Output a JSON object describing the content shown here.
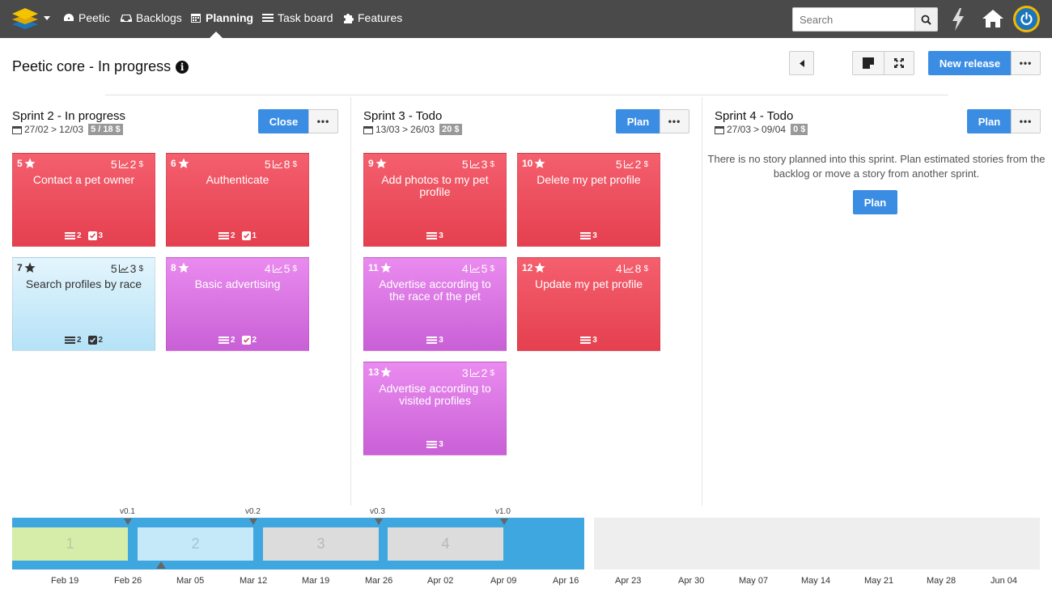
{
  "nav": {
    "items": [
      {
        "label": "Peetic",
        "icon": "dashboard-icon"
      },
      {
        "label": "Backlogs",
        "icon": "inbox-icon"
      },
      {
        "label": "Planning",
        "icon": "calendar-icon",
        "active": true
      },
      {
        "label": "Task board",
        "icon": "taskboard-icon"
      },
      {
        "label": "Features",
        "icon": "puzzle-icon"
      }
    ],
    "search_placeholder": "Search"
  },
  "header": {
    "title": "Peetic core - In progress",
    "new_release_label": "New release",
    "more_label": "•••"
  },
  "sprints": [
    {
      "title": "Sprint 2 - In progress",
      "from": "27/02",
      "to": "12/03",
      "badge": "5 / 18 $",
      "action": "Close",
      "more": "•••"
    },
    {
      "title": "Sprint 3 - Todo",
      "from": "13/03",
      "to": "26/03",
      "badge": "20 $",
      "action": "Plan",
      "more": "•••"
    },
    {
      "title": "Sprint 4 - Todo",
      "from": "27/03",
      "to": "09/04",
      "badge": "0 $",
      "action": "Plan",
      "more": "•••",
      "empty_message": "There is no story planned into this sprint. Plan estimated stories from the backlog or move a story from another sprint.",
      "empty_action": "Plan"
    }
  ],
  "stories": [
    {
      "id": "5",
      "value": "5",
      "effort": "2",
      "title": "Contact a pet owner",
      "tasks": "2",
      "checks": "3"
    },
    {
      "id": "6",
      "value": "5",
      "effort": "8",
      "title": "Authenticate",
      "tasks": "2",
      "checks": "1"
    },
    {
      "id": "7",
      "value": "5",
      "effort": "3",
      "title": "Search profiles by race",
      "tasks": "2",
      "checks": "2"
    },
    {
      "id": "8",
      "value": "4",
      "effort": "5",
      "title": "Basic advertising",
      "tasks": "2",
      "checks": "2"
    },
    {
      "id": "9",
      "value": "5",
      "effort": "3",
      "title": "Add photos to my pet profile",
      "tasks": "3"
    },
    {
      "id": "10",
      "value": "5",
      "effort": "2",
      "title": "Delete my pet profile",
      "tasks": "3"
    },
    {
      "id": "11",
      "value": "4",
      "effort": "5",
      "title": "Advertise according to the race of the pet",
      "tasks": "3"
    },
    {
      "id": "12",
      "value": "4",
      "effort": "8",
      "title": "Update my pet profile",
      "tasks": "3"
    },
    {
      "id": "13",
      "value": "3",
      "effort": "2",
      "title": "Advertise according to visited profiles",
      "tasks": "3"
    }
  ],
  "currency": "$",
  "colors": {
    "red": "#e5404f",
    "purple": "#c960d6",
    "blue": "#b5e2f7",
    "accent": "#3b8de4"
  },
  "timeline": {
    "sprints": [
      "1",
      "2",
      "3",
      "4"
    ],
    "versions": [
      "v0.1",
      "v0.2",
      "v0.3",
      "v1.0"
    ],
    "dates": [
      "Feb 19",
      "Feb 26",
      "Mar 05",
      "Mar 12",
      "Mar 19",
      "Mar 26",
      "Apr 02",
      "Apr 09",
      "Apr 16",
      "Apr 23",
      "Apr 30",
      "May 07",
      "May 14",
      "May 21",
      "May 28",
      "Jun 04"
    ]
  }
}
